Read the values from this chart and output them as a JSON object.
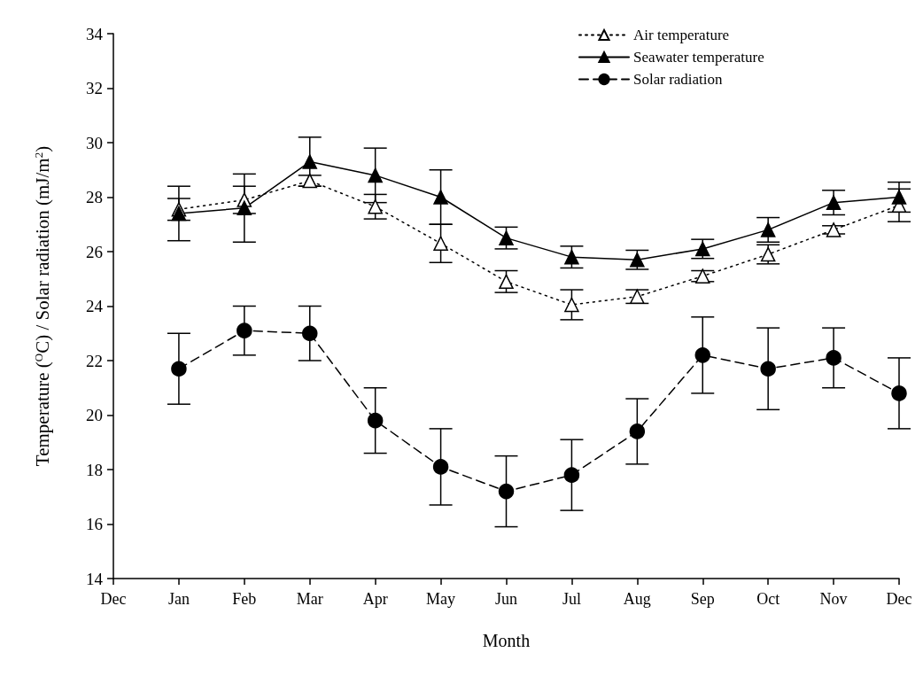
{
  "chart_data": {
    "type": "line",
    "xlabel": "Month",
    "ylabel": "Temperature ($^{O}$C) / Solar radiation (mJ/m$^{2}$)",
    "categories": [
      "Dec",
      "Jan",
      "Feb",
      "Mar",
      "Apr",
      "May",
      "Jun",
      "Jul",
      "Aug",
      "Sep",
      "Oct",
      "Nov",
      "Dec"
    ],
    "ylim": [
      14,
      34
    ],
    "yticks": [
      14,
      16,
      18,
      20,
      22,
      24,
      26,
      28,
      30,
      32,
      34
    ],
    "grid": false,
    "legend": "top right",
    "series": [
      {
        "name": "Air temperature",
        "color": "#000000",
        "marker": "triangle",
        "line_style": "dotted",
        "values": [
          null,
          27.55,
          27.9,
          28.6,
          27.65,
          26.3,
          24.9,
          24.05,
          24.35,
          25.1,
          25.9,
          26.8,
          27.7
        ],
        "errors": [
          null,
          0.4,
          0.5,
          0.2,
          0.45,
          0.7,
          0.4,
          0.55,
          0.25,
          0.2,
          0.35,
          0.15,
          0.6
        ]
      },
      {
        "name": "Seawater temperature",
        "color": "#000000",
        "marker": "triangle",
        "line_style": "solid",
        "values": [
          null,
          27.4,
          27.6,
          29.3,
          28.8,
          28.0,
          26.5,
          25.8,
          25.7,
          26.1,
          26.8,
          27.8,
          28.0
        ],
        "errors": [
          null,
          1.0,
          1.25,
          0.9,
          1.0,
          1.0,
          0.4,
          0.4,
          0.35,
          0.35,
          0.45,
          0.45,
          0.55
        ]
      },
      {
        "name": "Solar radiation",
        "color": "#000000",
        "marker": "circle",
        "line_style": "dashed",
        "values": [
          null,
          21.7,
          23.1,
          23.0,
          19.8,
          18.1,
          17.2,
          17.8,
          19.4,
          22.2,
          21.7,
          22.1,
          20.8
        ],
        "errors": [
          null,
          1.3,
          0.9,
          1.0,
          1.2,
          1.4,
          1.3,
          1.3,
          1.2,
          1.4,
          1.5,
          1.1,
          1.3
        ]
      }
    ]
  }
}
